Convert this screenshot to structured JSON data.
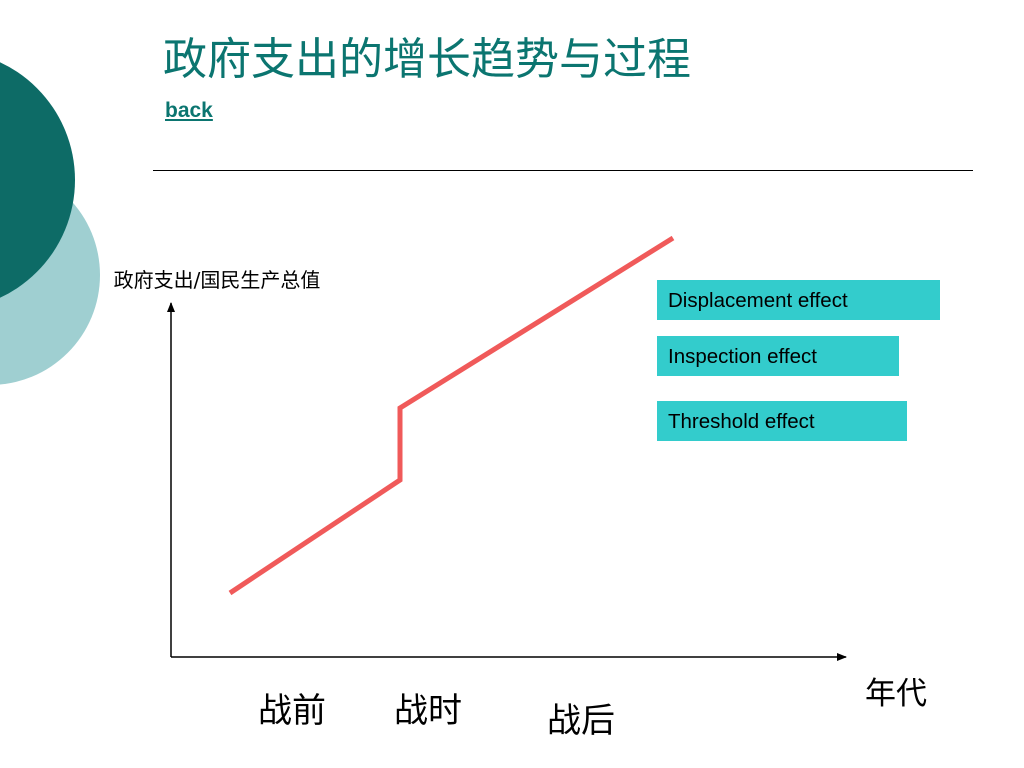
{
  "slide": {
    "title": "政府支出的增长趋势与过程",
    "back_link": "back"
  },
  "diagram": {
    "y_axis_label": "政府支出/国民生产总值",
    "x_axis_label": "年代",
    "periods": [
      "战前",
      "战时",
      "战后"
    ],
    "effects": [
      "Displacement effect",
      "Inspection effect",
      "Threshold effect"
    ]
  },
  "colors": {
    "title": "#0b7570",
    "trend_line": "#f05a5a",
    "effect_box": "#33cccc",
    "decor_dark": "#0d6b66",
    "decor_light": "#9fcfd1"
  }
}
